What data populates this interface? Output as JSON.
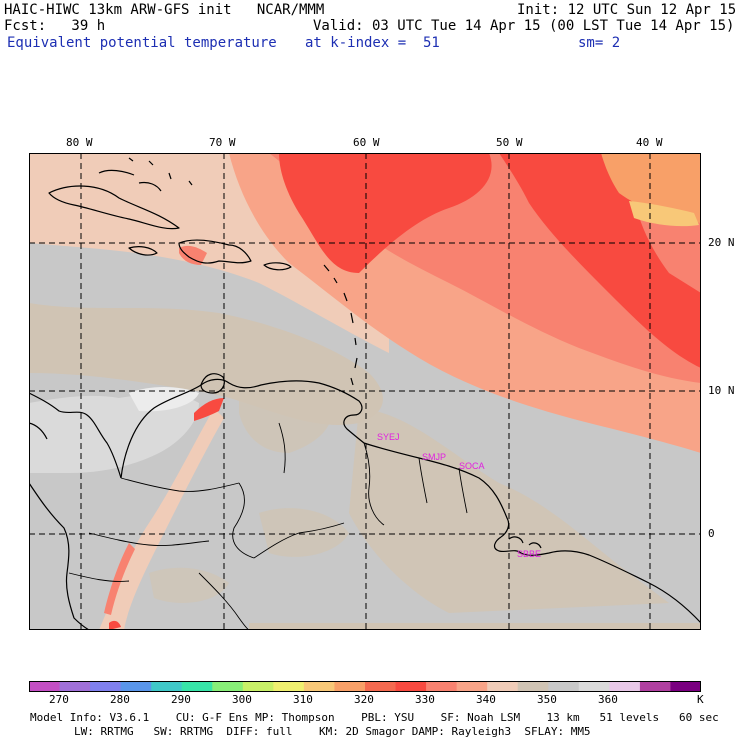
{
  "header": {
    "model_line": "HAIC-HIWC 13km ARW-GFS init   NCAR/MMM",
    "init_line": "Init: 12 UTC Sun 12 Apr 15",
    "fcst_line": "Fcst:   39 h",
    "valid_line": "Valid: 03 UTC Tue 14 Apr 15 (00 LST Tue 14 Apr 15)",
    "field_line": "Equivalent potential temperature",
    "level_line": "at k-index =  51",
    "smooth_line": "sm= 2"
  },
  "map": {
    "lon_labels": [
      "80 W",
      "70 W",
      "60 W",
      "50 W",
      "40 W"
    ],
    "lat_labels": [
      "20 N",
      "10 N",
      "0"
    ],
    "stations": [
      "SYEJ",
      "SMJP",
      "SOCA",
      "SBBE"
    ],
    "coast_color": "#000000",
    "station_color": "#e020e0"
  },
  "colorbar": {
    "colors": [
      "#c44fc4",
      "#a070d8",
      "#8080ee",
      "#5a96ea",
      "#40c8c8",
      "#38e4a8",
      "#88ee78",
      "#c8f068",
      "#f0f070",
      "#f8c878",
      "#f8a068",
      "#f46a50",
      "#f84a40",
      "#f88270",
      "#f8a488",
      "#f0ccb8",
      "#d0c4b4",
      "#c8c8c8",
      "#dadada",
      "#e8c8e8",
      "#b040a0",
      "#7a0080"
    ],
    "labels": [
      "270",
      "280",
      "290",
      "300",
      "310",
      "320",
      "330",
      "340",
      "350",
      "360",
      "K"
    ]
  },
  "footer": {
    "line1": "Model Info: V3.6.1    CU: G-F Ens MP: Thompson    PBL: YSU    SF: Noah LSM    13 km   51 levels   60 sec",
    "line2": "LW: RRTMG   SW: RRTMG  DIFF: full    KM: 2D Smagor DAMP: Rayleigh3  SFLAY: MM5"
  }
}
